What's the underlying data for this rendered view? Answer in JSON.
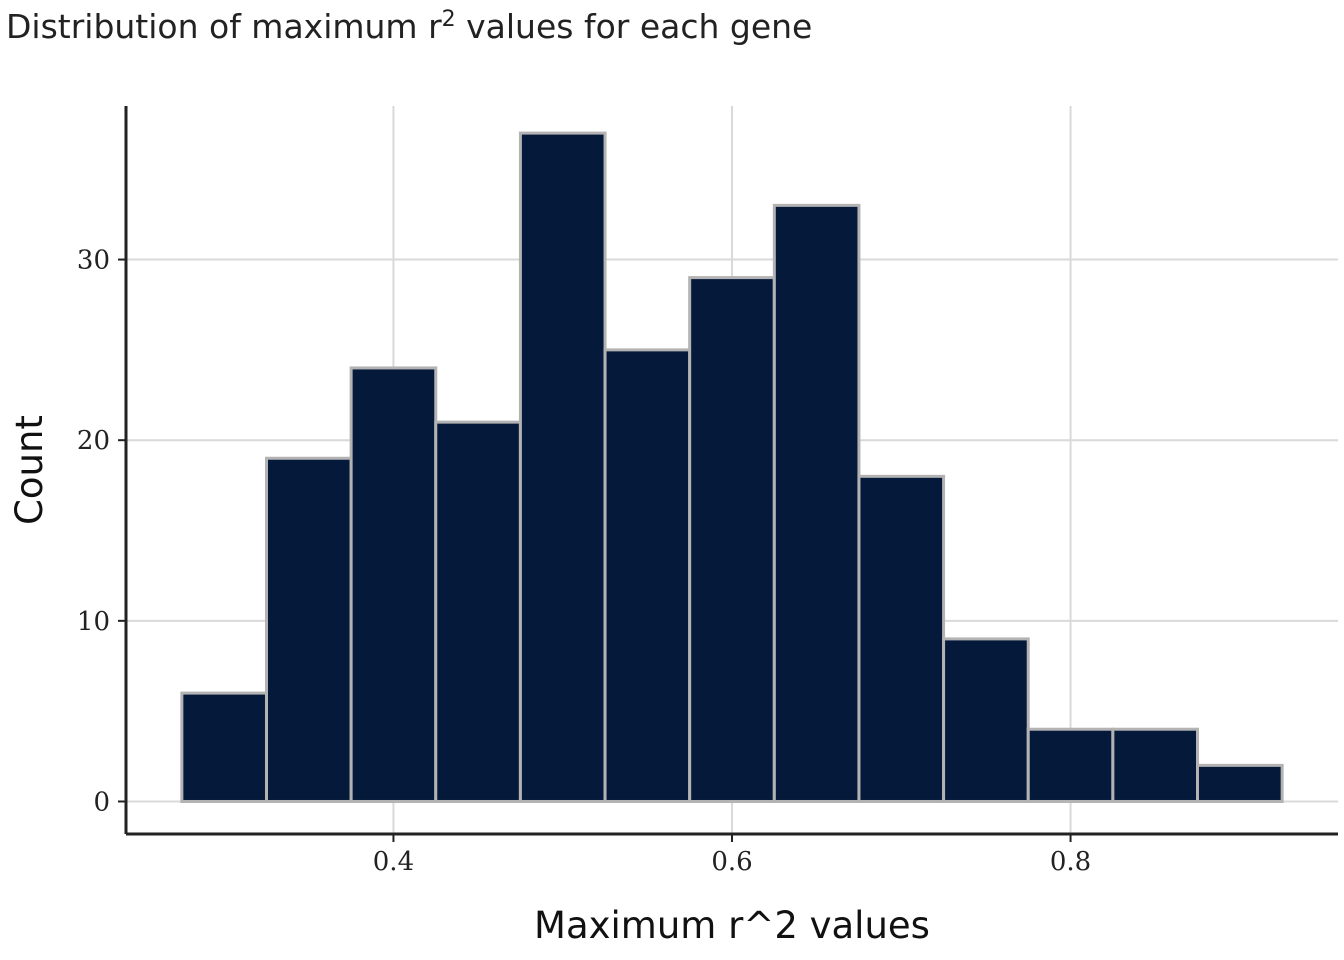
{
  "chart_data": {
    "type": "bar",
    "title_main": "Distribution of maximum r",
    "title_sup": "2",
    "title_rest": " values for each gene",
    "xlabel": "Maximum r^2 values",
    "ylabel": "Count",
    "bin_width": 0.05,
    "bins": [
      {
        "start": 0.275,
        "end": 0.325,
        "count": 6
      },
      {
        "start": 0.325,
        "end": 0.375,
        "count": 19
      },
      {
        "start": 0.375,
        "end": 0.425,
        "count": 24
      },
      {
        "start": 0.425,
        "end": 0.475,
        "count": 21
      },
      {
        "start": 0.475,
        "end": 0.525,
        "count": 37
      },
      {
        "start": 0.525,
        "end": 0.575,
        "count": 25
      },
      {
        "start": 0.575,
        "end": 0.625,
        "count": 29
      },
      {
        "start": 0.625,
        "end": 0.675,
        "count": 33
      },
      {
        "start": 0.675,
        "end": 0.725,
        "count": 18
      },
      {
        "start": 0.725,
        "end": 0.775,
        "count": 9
      },
      {
        "start": 0.775,
        "end": 0.825,
        "count": 4
      },
      {
        "start": 0.825,
        "end": 0.875,
        "count": 4
      },
      {
        "start": 0.875,
        "end": 0.925,
        "count": 2
      }
    ],
    "xlim": [
      0.242,
      0.958
    ],
    "ylim": [
      -1.8,
      38.5
    ],
    "x_ticks": [
      {
        "value": 0.4,
        "label": "0.4"
      },
      {
        "value": 0.6,
        "label": "0.6"
      },
      {
        "value": 0.8,
        "label": "0.8"
      }
    ],
    "y_ticks": [
      {
        "value": 0,
        "label": "0"
      },
      {
        "value": 10,
        "label": "10"
      },
      {
        "value": 20,
        "label": "20"
      },
      {
        "value": 30,
        "label": "30"
      }
    ],
    "grid": true,
    "legend": "none",
    "colors": {
      "bar_fill": "#05193a",
      "bar_edge": "#b3b3b3",
      "grid": "#d9d9d9",
      "axis": "#222222"
    }
  }
}
